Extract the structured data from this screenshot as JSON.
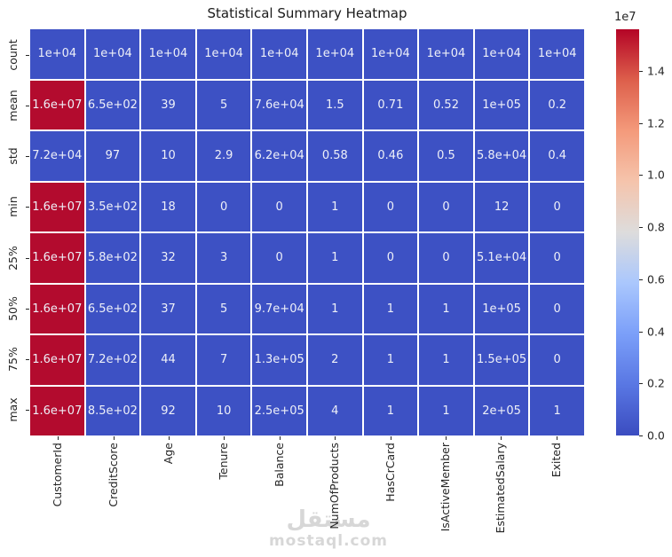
{
  "title": "Statistical Summary Heatmap",
  "watermark": {
    "arabic_text": "مستقل",
    "domain_text": "mostaql.com"
  },
  "chart_data": {
    "type": "heatmap",
    "title": "Statistical Summary Heatmap",
    "rows": [
      "count",
      "mean",
      "std",
      "min",
      "25%",
      "50%",
      "75%",
      "max"
    ],
    "columns": [
      "CustomerId",
      "CreditScore",
      "Age",
      "Tenure",
      "Balance",
      "NumOfProducts",
      "HasCrCard",
      "IsActiveMember",
      "EstimatedSalary",
      "Exited"
    ],
    "values": [
      [
        "1e+04",
        "1e+04",
        "1e+04",
        "1e+04",
        "1e+04",
        "1e+04",
        "1e+04",
        "1e+04",
        "1e+04",
        "1e+04"
      ],
      [
        "1.6e+07",
        "6.5e+02",
        "39",
        "5",
        "7.6e+04",
        "1.5",
        "0.71",
        "0.52",
        "1e+05",
        "0.2"
      ],
      [
        "7.2e+04",
        "97",
        "10",
        "2.9",
        "6.2e+04",
        "0.58",
        "0.46",
        "0.5",
        "5.8e+04",
        "0.4"
      ],
      [
        "1.6e+07",
        "3.5e+02",
        "18",
        "0",
        "0",
        "1",
        "0",
        "0",
        "12",
        "0"
      ],
      [
        "1.6e+07",
        "5.8e+02",
        "32",
        "3",
        "0",
        "1",
        "0",
        "0",
        "5.1e+04",
        "0"
      ],
      [
        "1.6e+07",
        "6.5e+02",
        "37",
        "5",
        "9.7e+04",
        "1",
        "1",
        "1",
        "1e+05",
        "0"
      ],
      [
        "1.6e+07",
        "7.2e+02",
        "44",
        "7",
        "1.3e+05",
        "2",
        "1",
        "1",
        "1.5e+05",
        "0"
      ],
      [
        "1.6e+07",
        "8.5e+02",
        "92",
        "10",
        "2.5e+05",
        "4",
        "1",
        "1",
        "2e+05",
        "1"
      ]
    ],
    "colormap": "coolwarm",
    "colors": {
      "cell_low": "#3d51c4",
      "cell_high": "#b30b2e",
      "high_display_value": "1.6e+07",
      "cell_text": "#eef0f8"
    },
    "colorbar": {
      "exponent_label": "1e7",
      "tick_labels": [
        "1.4",
        "1.2",
        "1.0",
        "0.8",
        "0.6",
        "0.4",
        "0.2",
        "0.0"
      ],
      "tick_values": [
        1.4,
        1.2,
        1.0,
        0.8,
        0.6,
        0.4,
        0.2,
        0.0
      ],
      "vmin_1e7": 0.0,
      "vmax_estimate_1e7": 1.56,
      "position": "right"
    },
    "grid": true,
    "legend": false
  }
}
